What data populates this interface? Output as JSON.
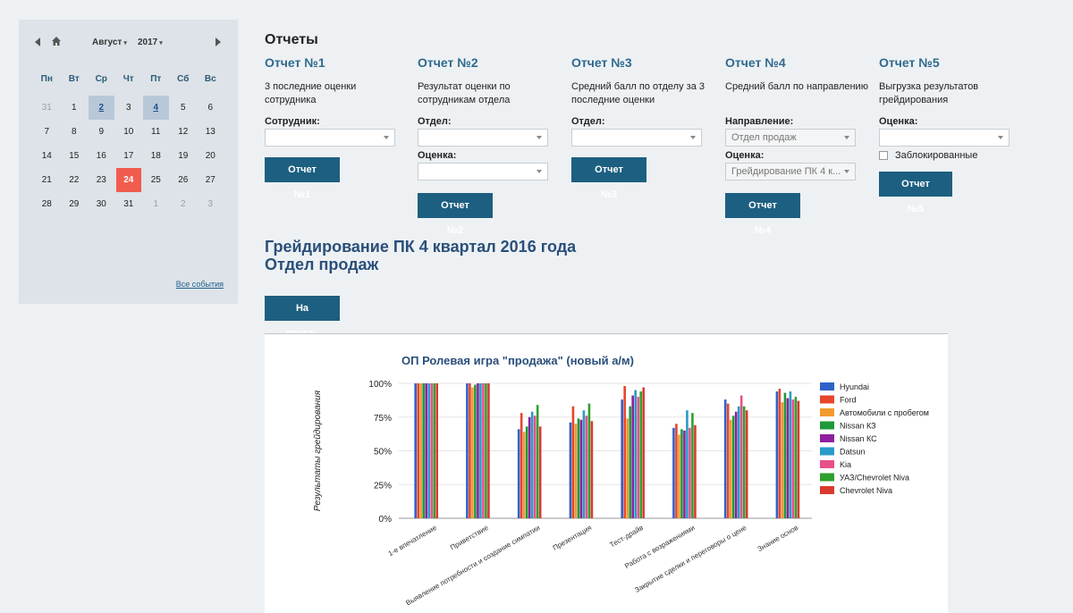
{
  "calendar": {
    "month": "Август",
    "year": "2017",
    "dow": [
      "Пн",
      "Вт",
      "Ср",
      "Чт",
      "Пт",
      "Сб",
      "Вс"
    ],
    "days": [
      {
        "d": "31",
        "t": "other"
      },
      {
        "d": "1",
        "t": ""
      },
      {
        "d": "2",
        "t": "event"
      },
      {
        "d": "3",
        "t": ""
      },
      {
        "d": "4",
        "t": "event"
      },
      {
        "d": "5",
        "t": ""
      },
      {
        "d": "6",
        "t": ""
      },
      {
        "d": "7",
        "t": ""
      },
      {
        "d": "8",
        "t": ""
      },
      {
        "d": "9",
        "t": ""
      },
      {
        "d": "10",
        "t": ""
      },
      {
        "d": "11",
        "t": ""
      },
      {
        "d": "12",
        "t": ""
      },
      {
        "d": "13",
        "t": ""
      },
      {
        "d": "14",
        "t": ""
      },
      {
        "d": "15",
        "t": ""
      },
      {
        "d": "16",
        "t": ""
      },
      {
        "d": "17",
        "t": ""
      },
      {
        "d": "18",
        "t": ""
      },
      {
        "d": "19",
        "t": ""
      },
      {
        "d": "20",
        "t": ""
      },
      {
        "d": "21",
        "t": ""
      },
      {
        "d": "22",
        "t": ""
      },
      {
        "d": "23",
        "t": ""
      },
      {
        "d": "24",
        "t": "today"
      },
      {
        "d": "25",
        "t": ""
      },
      {
        "d": "26",
        "t": ""
      },
      {
        "d": "27",
        "t": ""
      },
      {
        "d": "28",
        "t": ""
      },
      {
        "d": "29",
        "t": ""
      },
      {
        "d": "30",
        "t": ""
      },
      {
        "d": "31",
        "t": ""
      },
      {
        "d": "1",
        "t": "other"
      },
      {
        "d": "2",
        "t": "other"
      },
      {
        "d": "3",
        "t": "other"
      }
    ],
    "all_events": "Все события"
  },
  "reports": {
    "heading": "Отчеты",
    "r1": {
      "title": "Отчет №1",
      "desc": "3 последние оценки сотрудника",
      "label1": "Сотрудник:",
      "button": "Отчет №1"
    },
    "r2": {
      "title": "Отчет №2",
      "desc": "Результат оценки по сотрудникам отдела",
      "label1": "Отдел:",
      "label2": "Оценка:",
      "button": "Отчет №2"
    },
    "r3": {
      "title": "Отчет №3",
      "desc": "Средний балл по отделу за 3 последние оценки",
      "label1": "Отдел:",
      "button": "Отчет №3"
    },
    "r4": {
      "title": "Отчет №4",
      "desc": "Средний балл по направлению",
      "label1": "Направление:",
      "value1": "Отдел продаж",
      "label2": "Оценка:",
      "value2": "Грейдирование ПК 4 к...",
      "button": "Отчет №4"
    },
    "r5": {
      "title": "Отчет №5",
      "desc": "Выгрузка результатов грейдирования",
      "label1": "Оценка:",
      "checkbox": "Заблокированные",
      "button": "Отчет №5"
    }
  },
  "grading": {
    "line1": "Грейдирование ПК 4 квартал 2016 года",
    "line2": "Отдел продаж",
    "print_button": "На печать"
  },
  "colors": {
    "accent": "#1d5f80",
    "title_blue": "#2e6a8e",
    "today": "#f05c4d"
  },
  "chart_data": {
    "type": "bar",
    "title": "ОП Ролевая игра \"продажа\" (новый а/м)",
    "ylabel": "Результаты грейдирования",
    "xlabel": "",
    "ylim": [
      0,
      100
    ],
    "yticks": [
      "0%",
      "25%",
      "50%",
      "75%",
      "100%"
    ],
    "legend_position": "right",
    "grid": true,
    "categories": [
      "1-е впечатление",
      "Приветствие",
      "Выявление потребности и создание симпатии",
      "Презентация",
      "Тест-драйв",
      "Работа с возражениями",
      "Закрытие сделки и переговоры о цене",
      "Знание основ"
    ],
    "series": [
      {
        "name": "Hyundai",
        "color": "#2f62c8",
        "values": [
          100,
          100,
          66,
          71,
          88,
          67,
          88,
          94
        ]
      },
      {
        "name": "Ford",
        "color": "#e8452c",
        "values": [
          100,
          100,
          78,
          83,
          98,
          70,
          85,
          96
        ]
      },
      {
        "name": "Автомобили с пробегом",
        "color": "#f39a2e",
        "values": [
          100,
          97,
          64,
          70,
          74,
          62,
          73,
          86
        ]
      },
      {
        "name": "Nissan КЗ",
        "color": "#1f9a3a",
        "values": [
          100,
          99,
          68,
          74,
          83,
          66,
          76,
          93
        ]
      },
      {
        "name": "Nissan КС",
        "color": "#8e1f9e",
        "values": [
          100,
          100,
          75,
          73,
          91,
          65,
          79,
          89
        ]
      },
      {
        "name": "Datsun",
        "color": "#2a9ac8",
        "values": [
          100,
          100,
          79,
          80,
          95,
          80,
          83,
          94
        ]
      },
      {
        "name": "Kia",
        "color": "#e8508a",
        "values": [
          100,
          100,
          76,
          76,
          90,
          67,
          91,
          88
        ]
      },
      {
        "name": "УАЗ/Chevrolet Niva",
        "color": "#2fa02f",
        "values": [
          100,
          100,
          84,
          85,
          94,
          78,
          83,
          90
        ]
      },
      {
        "name": "Chevrolet Niva",
        "color": "#d83a2e",
        "values": [
          100,
          100,
          68,
          72,
          97,
          69,
          80,
          87
        ]
      }
    ]
  }
}
